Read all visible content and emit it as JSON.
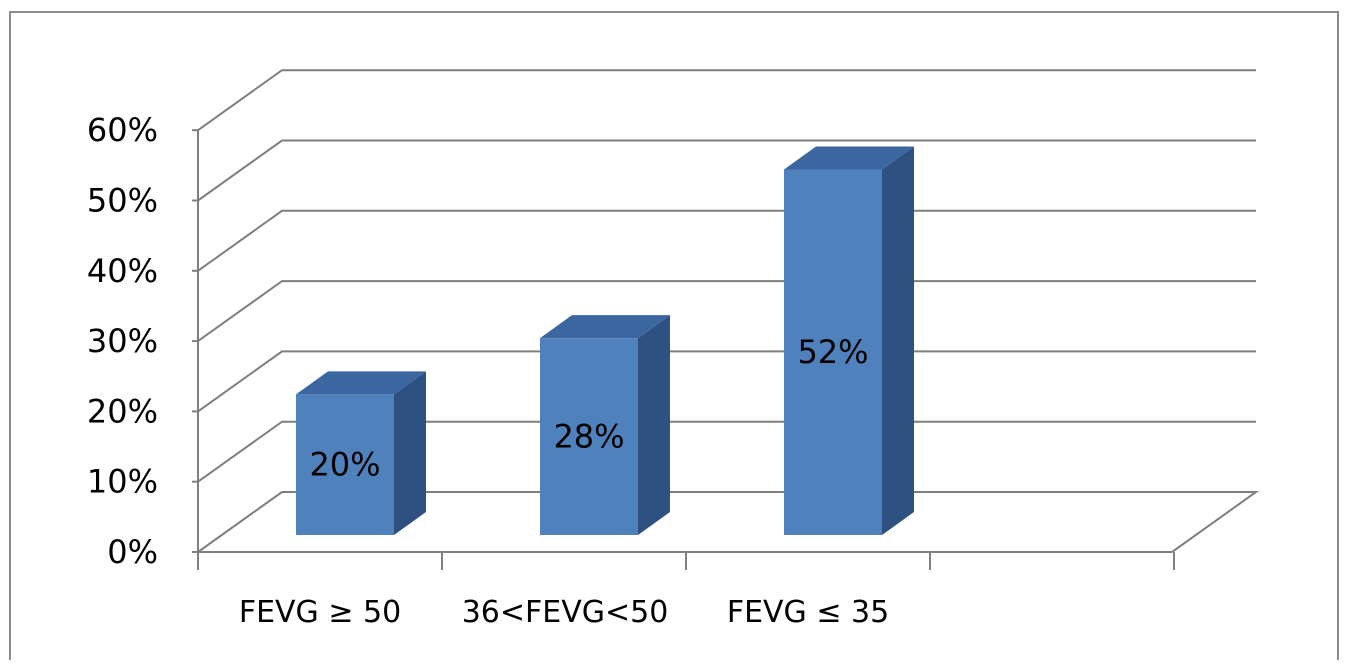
{
  "chart_data": {
    "type": "bar",
    "style": "3d-column",
    "categories": [
      "FEVG ≥ 50",
      "36<FEVG<50",
      "FEVG ≤ 35"
    ],
    "values": [
      20,
      28,
      52
    ],
    "data_labels": [
      "20%",
      "28%",
      "52%"
    ],
    "ylim": [
      0,
      60
    ],
    "yticks": [
      0,
      10,
      20,
      30,
      40,
      50,
      60
    ],
    "ytick_labels": [
      "0%",
      "10%",
      "20%",
      "30%",
      "40%",
      "50%",
      "60%"
    ],
    "grid": true,
    "legend": "none",
    "colors": {
      "bar_front": "#4f81bd",
      "bar_top": "#3c66a0",
      "bar_side": "#2f5182",
      "grid": "#7f7f7f",
      "axis": "#7f7f7f",
      "frame": "#8c8c8c",
      "text": "#000000"
    }
  }
}
